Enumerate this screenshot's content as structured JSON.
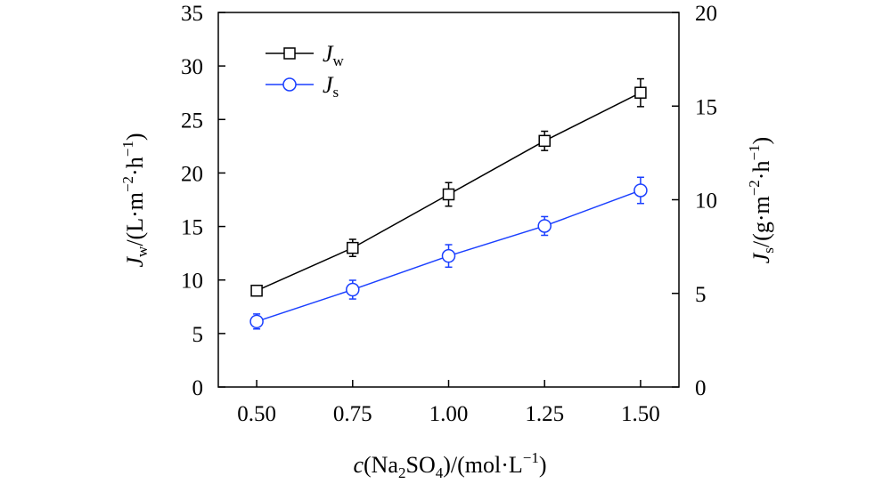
{
  "chart_data": {
    "type": "line",
    "x": [
      0.5,
      0.75,
      1.0,
      1.25,
      1.5
    ],
    "x_tick_labels": [
      "0.50",
      "0.75",
      "1.00",
      "1.25",
      "1.50"
    ],
    "xlim": [
      0.4,
      1.6
    ],
    "xlabel": {
      "c": "c",
      "pre": "(Na",
      "sub1": "2",
      "mid": "SO",
      "sub2": "4",
      "post": ")/(mol·L",
      "sup": "−1",
      "end": ")"
    },
    "y_left": {
      "lim": [
        0,
        35
      ],
      "ticks": [
        0,
        5,
        10,
        15,
        20,
        25,
        30,
        35
      ],
      "label": {
        "sym": "J",
        "sub": "w",
        "unit1": "/(L·m",
        "sup1": "−2",
        "unit2": "·h",
        "sup2": "−1",
        "end": ")"
      }
    },
    "y_right": {
      "lim": [
        0,
        20
      ],
      "ticks": [
        0,
        5,
        10,
        15,
        20
      ],
      "label": {
        "sym": "J",
        "sub": "s",
        "unit1": "/(g·m",
        "sup1": "−2",
        "unit2": "·h",
        "sup2": "−1",
        "end": ")"
      }
    },
    "series": [
      {
        "name": "Jw",
        "legend_sym": "J",
        "legend_sub": "w",
        "axis": "left",
        "marker": "square",
        "color": "#000000",
        "values": [
          9.0,
          13.0,
          18.0,
          23.0,
          27.5
        ],
        "errors": [
          0.5,
          0.8,
          1.1,
          0.9,
          1.3
        ]
      },
      {
        "name": "Js",
        "legend_sym": "J",
        "legend_sub": "s",
        "axis": "right",
        "marker": "circle",
        "color": "#1a3fff",
        "values": [
          3.5,
          5.2,
          7.0,
          8.6,
          10.5
        ],
        "errors": [
          0.4,
          0.5,
          0.6,
          0.5,
          0.7
        ]
      }
    ]
  }
}
